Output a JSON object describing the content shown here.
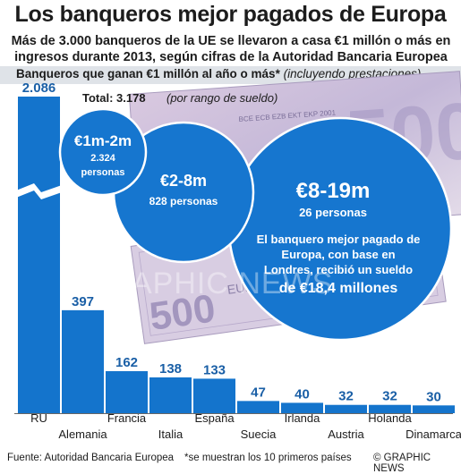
{
  "title": "Los banqueros mejor pagados de Europa",
  "subtitle": "Más de 3.000 banqueros de la UE se llevaron a casa €1 millón o más en ingresos durante 2013, según cifras de la Autoridad Bancaria Europea",
  "header": {
    "label": "Banqueros que ganan €1 millón al año o más*",
    "qualifier": "(incluyendo prestaciones)"
  },
  "chart_data": [
    {
      "type": "bar",
      "categories": [
        "RU",
        "Alemania",
        "Francia",
        "Italia",
        "España",
        "Suecia",
        "Irlanda",
        "Austria",
        "Holanda",
        "Dinamarca"
      ],
      "values": [
        2086,
        397,
        162,
        138,
        133,
        47,
        40,
        32,
        32,
        30
      ],
      "value_labels": [
        "2.086",
        "397",
        "162",
        "138",
        "133",
        "47",
        "40",
        "32",
        "32",
        "30"
      ],
      "axis_break": "RU",
      "grid": false,
      "bar_color": "#1474cc"
    },
    {
      "type": "bubble",
      "total_label": "Total: 3.178",
      "total_note": "(por rango de sueldo)",
      "bubbles": [
        {
          "range": "€1m-2m",
          "value": 2324,
          "value_label": "2.324",
          "unit": "personas"
        },
        {
          "range": "€2-8m",
          "value": 828,
          "value_label": "828",
          "unit": "personas"
        },
        {
          "range": "€8-19m",
          "value": 26,
          "value_label": "26",
          "unit": "personas"
        }
      ],
      "annotation": "El banquero mejor pagado de Europa, con base en Londres, recibió un sueldo de €18,4 millones",
      "bubble_color": "#1676cf"
    }
  ],
  "watermark": "GRAPHIC NEWS",
  "footer": {
    "source": "Fuente: Autoridad Bancaria Europea",
    "note": "*se muestran los 10 primeros países",
    "brand": "© GRAPHIC NEWS"
  }
}
